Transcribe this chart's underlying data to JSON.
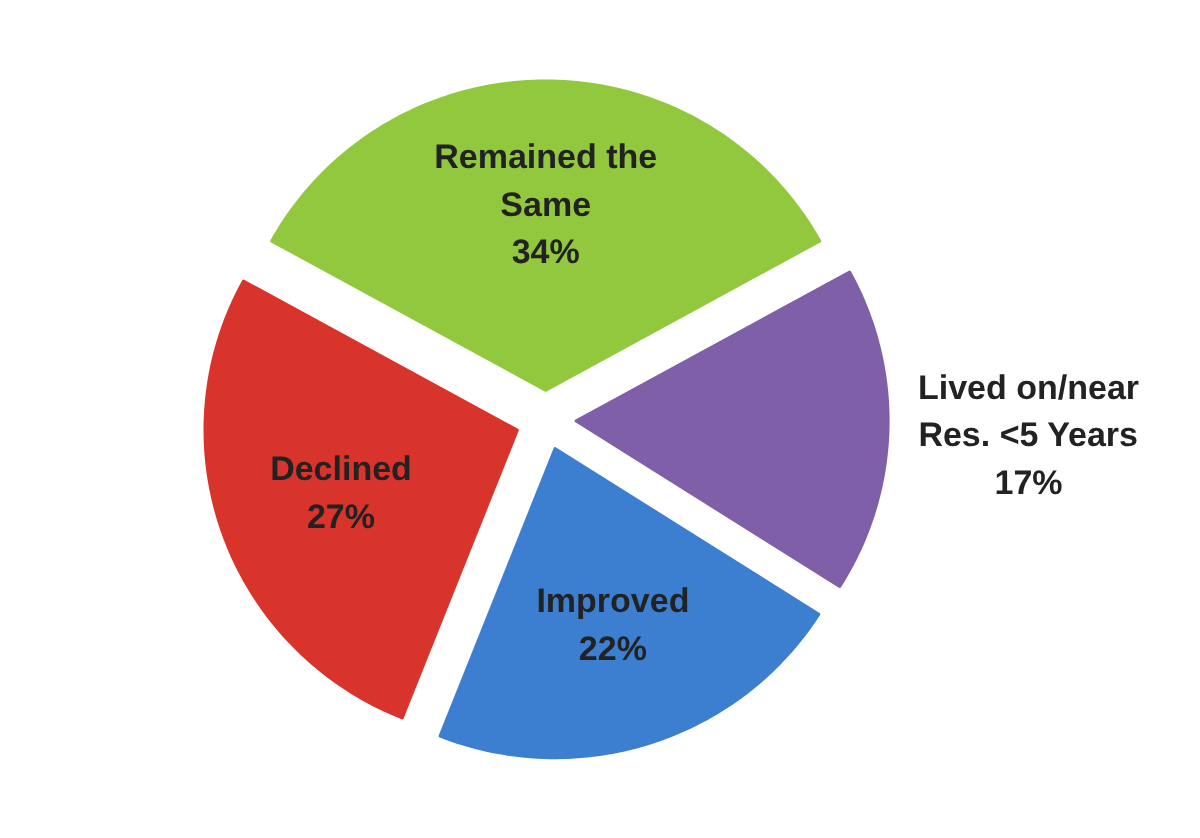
{
  "chart_data": {
    "type": "pie",
    "categories": [
      "Remained the Same",
      "Lived on/near Res. <5 Years",
      "Improved",
      "Declined"
    ],
    "values": [
      34,
      17,
      22,
      27
    ],
    "colors": [
      "#92c83e",
      "#7f5fa8",
      "#3c7fd1",
      "#d9342b"
    ],
    "value_labels": [
      "34%",
      "17%",
      "22%",
      "27%"
    ]
  }
}
